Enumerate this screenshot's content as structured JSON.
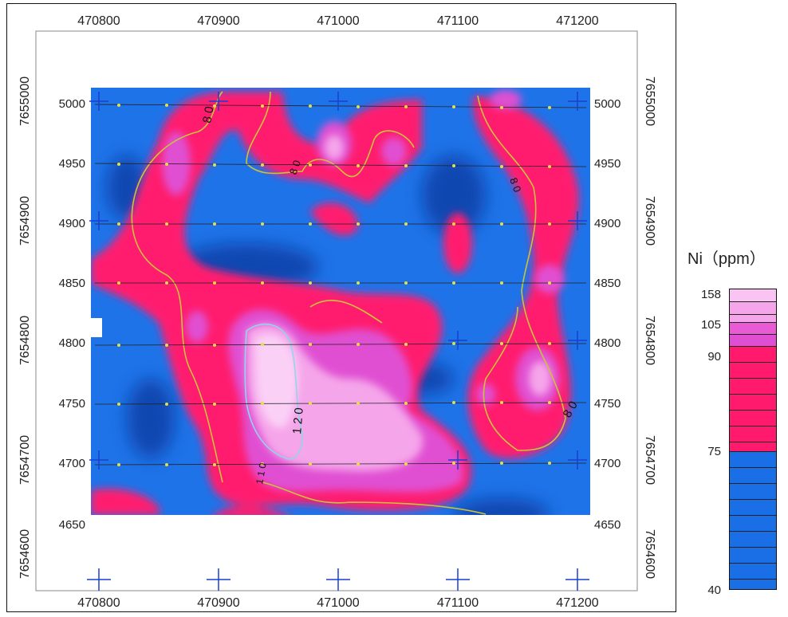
{
  "map": {
    "top_x_labels": [
      "470800",
      "470900",
      "471000",
      "471100",
      "471200"
    ],
    "bottom_x_labels": [
      "470800",
      "470900",
      "471000",
      "471100",
      "471200"
    ],
    "left_y_labels": [
      "7655000",
      "7654900",
      "7654800",
      "7654700",
      "7654600"
    ],
    "right_y_labels": [
      "7655000",
      "7654900",
      "7654800",
      "7654700",
      "7654600"
    ],
    "grid_y_labels": [
      "5000",
      "4950",
      "4900",
      "4850",
      "4800",
      "4750",
      "4700",
      "4650"
    ],
    "contour_labels": [
      "8 0",
      "8 0",
      "8 0",
      "1 2 0",
      "8 0",
      "1 1 0"
    ]
  },
  "legend": {
    "title": "Ni（ppm）",
    "labels": [
      "158",
      "105",
      "90",
      "75",
      "40"
    ],
    "colors": {
      "blue": "#1a6fe6",
      "red": "#ff1a6e",
      "magenta": "#e85bd4",
      "light_pink": "#f7a6ec",
      "high_pink": "#f9c4f2"
    }
  }
}
